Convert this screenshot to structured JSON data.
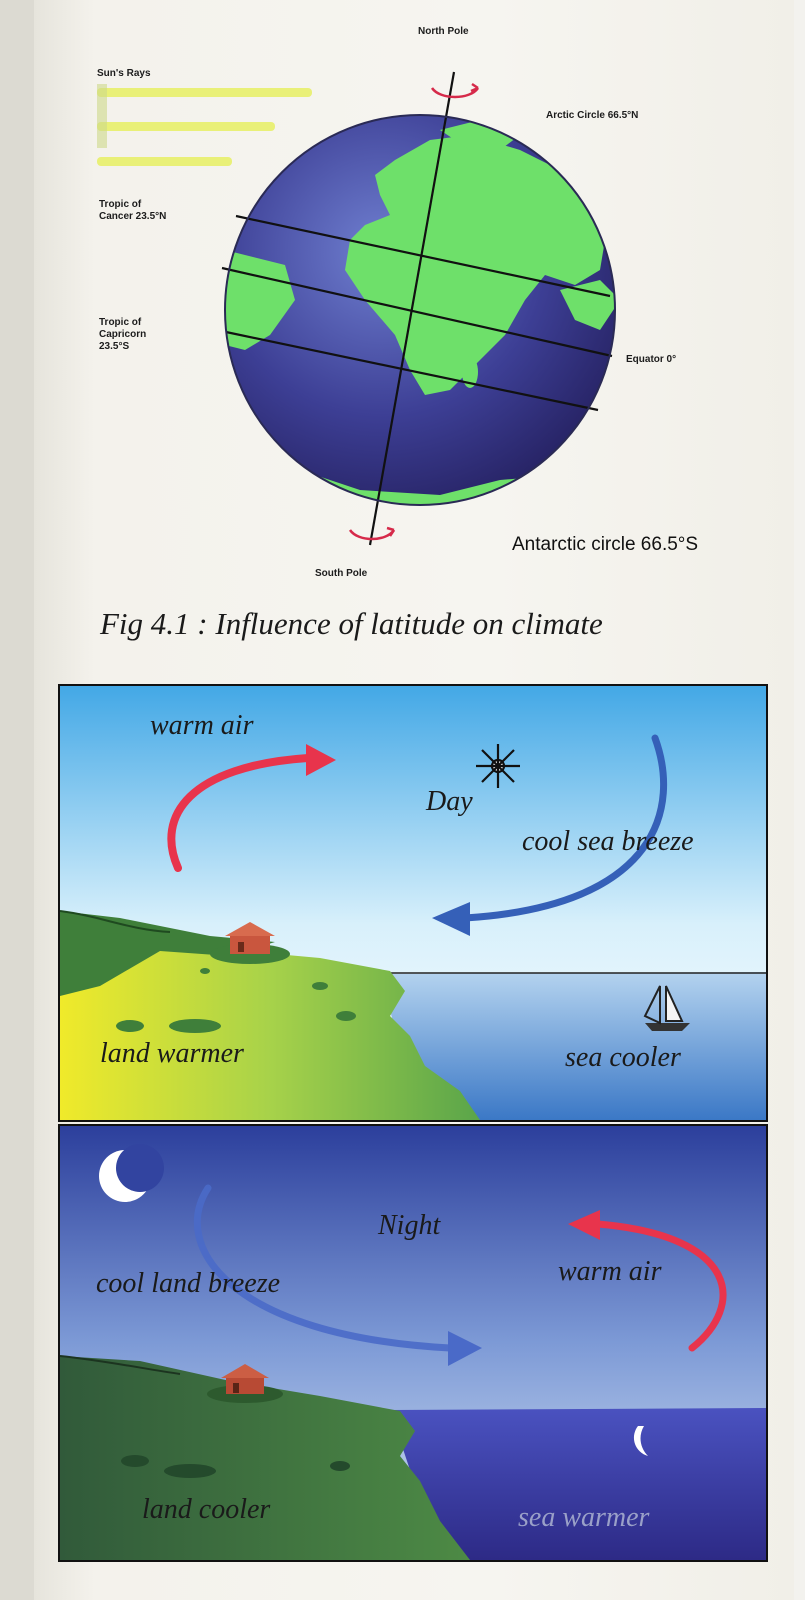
{
  "globe_figure": {
    "north_pole": "North Pole",
    "south_pole": "South Pole",
    "sun_rays": "Sun's Rays",
    "arctic_circle": "Arctic Circle 66.5°N",
    "tropic_cancer": "Tropic of\nCancer 23.5°N",
    "tropic_capricorn": "Tropic of\nCapricorn\n23.5°S",
    "equator": "Equator 0°",
    "antarctic_circle": "Antarctic circle 66.5°S",
    "caption": "Fig 4.1 : Influence of latitude on climate"
  },
  "day_panel": {
    "warm_air": "warm air",
    "day": "Day",
    "cool_sea_breeze": "cool sea breeze",
    "land_warmer": "land warmer",
    "sea_cooler": "sea cooler"
  },
  "night_panel": {
    "night": "Night",
    "cool_land_breeze": "cool land breeze",
    "warm_air": "warm air",
    "land_cooler": "land cooler",
    "sea_warmer": "sea warmer"
  }
}
